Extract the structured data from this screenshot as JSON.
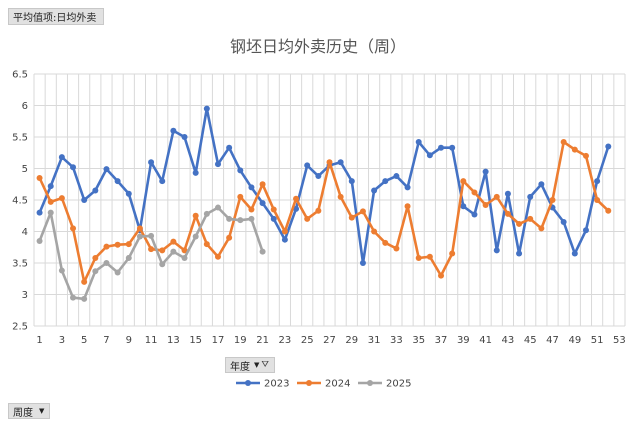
{
  "pivot": {
    "value_field_label": "平均值项:日均外卖",
    "year_field_label": "年度",
    "week_field_label": "周度"
  },
  "colors": {
    "2023": "#4472c4",
    "2024": "#ed7d31",
    "2025": "#a5a5a5",
    "grid": "#d9d9d9"
  },
  "chart_data": {
    "type": "line",
    "title": "钢坯日均外卖历史（周）",
    "xlabel": "",
    "ylabel": "",
    "ylim": [
      2.5,
      6.5
    ],
    "yticks": [
      "2.5",
      "3",
      "3.5",
      "4",
      "4.5",
      "5",
      "5.5",
      "6",
      "6.5"
    ],
    "xlim": [
      1,
      53
    ],
    "xticks": [
      "1",
      "3",
      "5",
      "7",
      "9",
      "11",
      "13",
      "15",
      "17",
      "19",
      "21",
      "23",
      "25",
      "27",
      "29",
      "31",
      "33",
      "35",
      "37",
      "39",
      "41",
      "43",
      "45",
      "47",
      "49",
      "51",
      "53"
    ],
    "grid": true,
    "legend_position": "bottom",
    "series": [
      {
        "name": "2023",
        "x": [
          1,
          2,
          3,
          4,
          5,
          6,
          7,
          8,
          9,
          10,
          11,
          12,
          13,
          14,
          15,
          16,
          17,
          18,
          19,
          20,
          21,
          22,
          23,
          24,
          25,
          26,
          27,
          28,
          29,
          30,
          31,
          32,
          33,
          34,
          35,
          36,
          37,
          38,
          39,
          40,
          41,
          42,
          43,
          44,
          45,
          46,
          47,
          48,
          49,
          50,
          51,
          52
        ],
        "values": [
          4.3,
          4.72,
          5.18,
          5.02,
          4.5,
          4.65,
          4.99,
          4.8,
          4.6,
          4.02,
          5.1,
          4.8,
          5.6,
          5.5,
          4.93,
          5.95,
          5.07,
          5.33,
          4.97,
          4.7,
          4.45,
          4.2,
          3.87,
          4.36,
          5.05,
          4.88,
          5.05,
          5.1,
          4.8,
          3.5,
          4.65,
          4.8,
          4.88,
          4.7,
          5.42,
          5.21,
          5.33,
          5.33,
          4.4,
          4.27,
          4.95,
          3.7,
          4.6,
          3.65,
          4.55,
          4.75,
          4.38,
          4.15,
          3.65,
          4.02,
          4.8,
          5.35
        ]
      },
      {
        "name": "2024",
        "x": [
          1,
          2,
          3,
          4,
          5,
          6,
          7,
          8,
          9,
          10,
          11,
          12,
          13,
          14,
          15,
          16,
          17,
          18,
          19,
          20,
          21,
          22,
          23,
          24,
          25,
          26,
          27,
          28,
          29,
          30,
          31,
          32,
          33,
          34,
          35,
          36,
          37,
          38,
          39,
          40,
          41,
          42,
          43,
          44,
          45,
          46,
          47,
          48,
          49,
          50,
          51,
          52
        ],
        "values": [
          4.85,
          4.47,
          4.53,
          4.05,
          3.2,
          3.58,
          3.76,
          3.79,
          3.8,
          4.05,
          3.72,
          3.7,
          3.84,
          3.7,
          4.25,
          3.8,
          3.6,
          3.9,
          4.55,
          4.35,
          4.75,
          4.35,
          4.0,
          4.52,
          4.2,
          4.33,
          5.1,
          4.55,
          4.22,
          4.32,
          4.0,
          3.82,
          3.73,
          4.4,
          3.58,
          3.6,
          3.3,
          3.65,
          4.8,
          4.62,
          4.42,
          4.55,
          4.28,
          4.12,
          4.2,
          4.05,
          4.5,
          5.42,
          5.3,
          5.2,
          4.5,
          4.33
        ]
      },
      {
        "name": "2025",
        "x": [
          1,
          2,
          3,
          4,
          5,
          6,
          7,
          8,
          9,
          10,
          11,
          12,
          13,
          14,
          15,
          16,
          17,
          18,
          19,
          20,
          21
        ],
        "values": [
          3.85,
          4.3,
          3.38,
          2.95,
          2.93,
          3.37,
          3.5,
          3.35,
          3.58,
          3.92,
          3.93,
          3.48,
          3.68,
          3.58,
          3.92,
          4.28,
          4.38,
          4.2,
          4.18,
          4.2,
          3.68
        ]
      }
    ]
  }
}
